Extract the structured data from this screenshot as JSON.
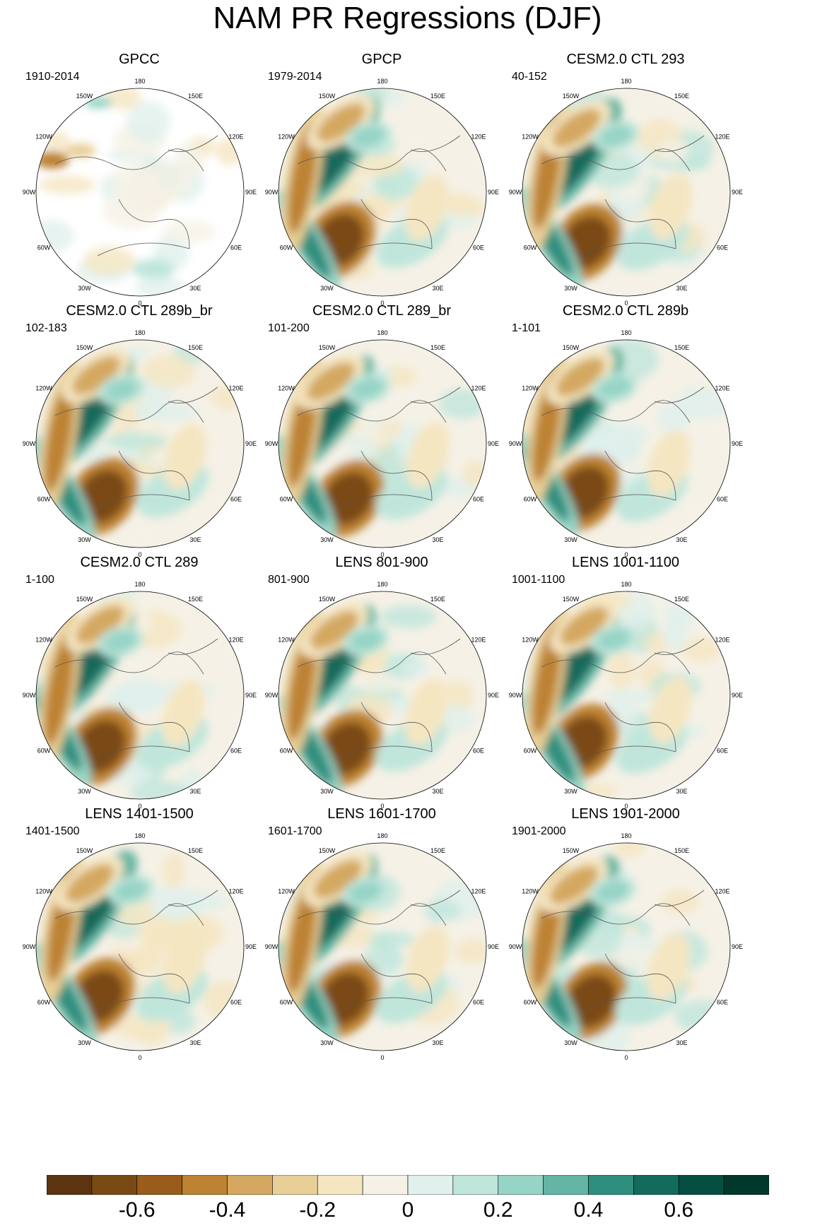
{
  "title": "NAM PR Regressions (DJF)",
  "longitude_labels": [
    "180",
    "150E",
    "120E",
    "90E",
    "60E",
    "30E",
    "0",
    "30W",
    "60W",
    "90W",
    "120W",
    "150W"
  ],
  "panels": [
    {
      "title": "GPCC",
      "period": "1910-2014",
      "dataset": "observed",
      "has_missing_data": true
    },
    {
      "title": "GPCP",
      "period": "1979-2014",
      "dataset": "observed",
      "has_missing_data": false
    },
    {
      "title": "CESM2.0 CTL 293",
      "period": "40-152",
      "dataset": "model",
      "has_missing_data": false
    },
    {
      "title": "CESM2.0 CTL 289b_br",
      "period": "102-183",
      "dataset": "model",
      "has_missing_data": false
    },
    {
      "title": "CESM2.0 CTL 289_br",
      "period": "101-200",
      "dataset": "model",
      "has_missing_data": false
    },
    {
      "title": "CESM2.0 CTL 289b",
      "period": "1-101",
      "dataset": "model",
      "has_missing_data": false
    },
    {
      "title": "CESM2.0 CTL 289",
      "period": "1-100",
      "dataset": "model",
      "has_missing_data": false
    },
    {
      "title": "LENS 801-900",
      "period": "801-900",
      "dataset": "model",
      "has_missing_data": false
    },
    {
      "title": "LENS 1001-1100",
      "period": "1001-1100",
      "dataset": "model",
      "has_missing_data": false
    },
    {
      "title": "LENS 1401-1500",
      "period": "1401-1500",
      "dataset": "model",
      "has_missing_data": false
    },
    {
      "title": "LENS 1601-1700",
      "period": "1601-1700",
      "dataset": "model",
      "has_missing_data": false
    },
    {
      "title": "LENS 1901-2000",
      "period": "1901-2000",
      "dataset": "model",
      "has_missing_data": false
    }
  ],
  "colorbar": {
    "colors": [
      "#5c3510",
      "#7a4a14",
      "#9a5c1a",
      "#bd8232",
      "#d4a860",
      "#e8cf98",
      "#f5e6c2",
      "#f5f1e6",
      "#e0f0ec",
      "#c0e6dc",
      "#96d4c6",
      "#64b5a3",
      "#2e8f7e",
      "#126b5c",
      "#044f42",
      "#00382c"
    ],
    "labels": [
      "-0.6",
      "-0.4",
      "-0.2",
      "0",
      "0.2",
      "0.4",
      "0.6"
    ],
    "label_levels": [
      -0.6,
      -0.4,
      -0.2,
      0,
      0.2,
      0.4,
      0.6
    ],
    "min": -0.8,
    "max": 0.8
  }
}
